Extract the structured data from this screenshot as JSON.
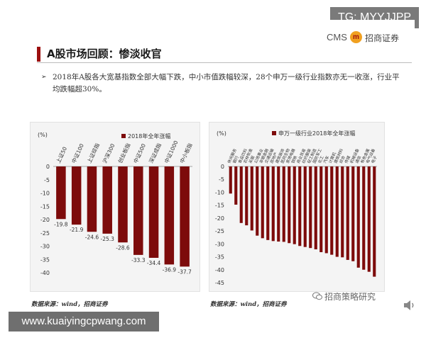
{
  "overlay": {
    "tg_label": "TG: MYYJJPP",
    "url_label": "www.kuaiyingcpwang.com"
  },
  "header": {
    "logo_cms": "CMS",
    "logo_mark": "m",
    "logo_cn": "招商证券",
    "title": "A股市场回顾：惨淡收官"
  },
  "bullet": {
    "text": "2018年A股各大宽基指数全部大幅下跌，中小市值跌幅较深，28个申万一级行业指数亦无一收涨，行业平均跌幅超30%。"
  },
  "footer": {
    "watermark": "招商策略研究"
  },
  "chart_data": [
    {
      "type": "bar",
      "ylabel": "(%)",
      "legend": "2018年全年涨幅",
      "legend_position": "top",
      "ylim": [
        -40,
        0
      ],
      "yticks": [
        0,
        -5,
        -10,
        -15,
        -20,
        -25,
        -30,
        -35,
        -40
      ],
      "grid": false,
      "categories": [
        "上证50",
        "中证100",
        "上证综指",
        "沪深300",
        "创业板指",
        "中证500",
        "深证成指",
        "中证1000",
        "中小板指"
      ],
      "values": [
        -19.8,
        -21.9,
        -24.6,
        -25.3,
        -28.6,
        -33.3,
        -34.4,
        -36.9,
        -37.7
      ],
      "data_labels": [
        "-19.8",
        "-21.9",
        "-24.6",
        "-25.3",
        "-28.6",
        "-33.3",
        "-34.4",
        "-36.9",
        "-37.7"
      ],
      "bar_color": "#7d0b0b",
      "source": "数据来源：wind，招商证券"
    },
    {
      "type": "bar",
      "ylabel": "(%)",
      "legend": "申万一级行业2018年全年涨幅",
      "legend_position": "top",
      "ylim": [
        -45,
        0
      ],
      "yticks": [
        0,
        -5,
        -10,
        -15,
        -20,
        -25,
        -30,
        -35,
        -40,
        -45
      ],
      "grid": false,
      "categories": [
        "休闲服务",
        "银行",
        "食品饮料",
        "农林牧渔",
        "采掘",
        "公用事业",
        "非银金融",
        "交通运输",
        "房地产",
        "建筑装饰",
        "医药生物",
        "家用电器",
        "钢铁",
        "商业贸易",
        "纺织服装",
        "轻工制造",
        "国防军工",
        "化工",
        "汽车",
        "计算机",
        "建筑材料",
        "综合",
        "传媒",
        "机械设备",
        "通信",
        "有色金属",
        "电气设备",
        "电子"
      ],
      "values": [
        -10.5,
        -14.8,
        -21.9,
        -22.8,
        -24.8,
        -26.8,
        -27.8,
        -28.5,
        -28.9,
        -29.1,
        -29.2,
        -29.7,
        -30.1,
        -30.8,
        -31.2,
        -31.6,
        -32.1,
        -33.2,
        -33.6,
        -34.2,
        -35.0,
        -35.2,
        -36.2,
        -36.7,
        -39.2,
        -40.0,
        -40.8,
        -42.7
      ],
      "bar_color": "#7d0b0b",
      "source": "数据来源：wind，招商证券"
    }
  ]
}
